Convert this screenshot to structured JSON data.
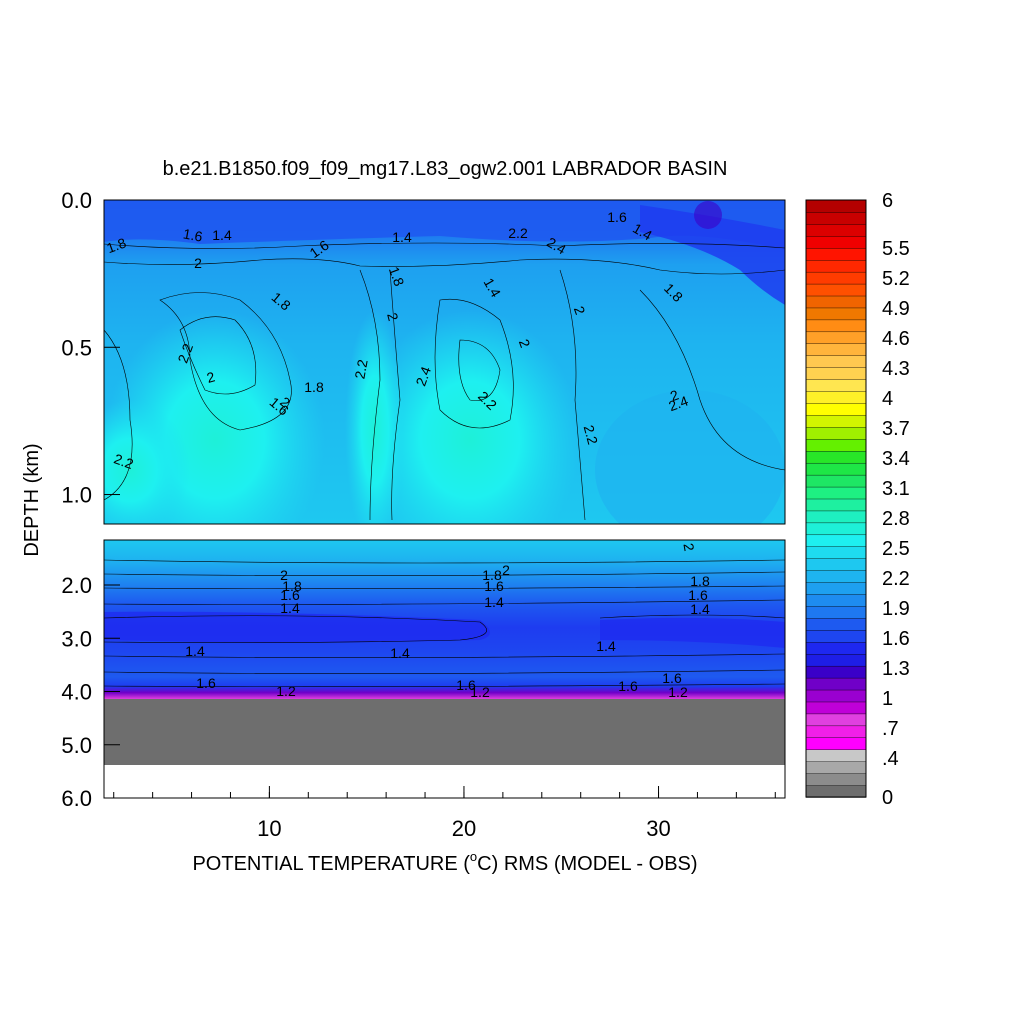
{
  "chart_data": {
    "type": "heatmap",
    "title": "b.e21.B1850.f09_f09_mg17.L83_ogw2.001 LABRADOR BASIN",
    "xlabel": "POTENTIAL TEMPERATURE (",
    "xlabel_sup": "o",
    "xlabel_rest": "C) RMS (MODEL - OBS)",
    "ylabel": "DEPTH (km)",
    "x_ticks": [
      "10",
      "20",
      "30"
    ],
    "y_ticks_upper": [
      "0.0",
      "0.5",
      "1.0"
    ],
    "y_ticks_lower": [
      "2.0",
      "3.0",
      "4.0",
      "5.0",
      "6.0"
    ],
    "colorbar_labels": [
      "6",
      "5.5",
      "5.2",
      "4.9",
      "4.6",
      "4.3",
      "4",
      "3.7",
      "3.4",
      "3.1",
      "2.8",
      "2.5",
      "2.2",
      "1.9",
      "1.6",
      "1.3",
      "1",
      ".7",
      ".4",
      "0"
    ],
    "colorbar_colors": [
      "#6e6e6e",
      "#8c8c8c",
      "#a8a8a8",
      "#c8c8c8",
      "#ff00ff",
      "#f020e8",
      "#e040e0",
      "#c000d8",
      "#9a00d0",
      "#7000c8",
      "#3a00c8",
      "#1e1ee6",
      "#1e28f0",
      "#1e46f0",
      "#1e5af0",
      "#1e78f0",
      "#1e8cf0",
      "#1ea0f0",
      "#1eb4f0",
      "#1ec8f0",
      "#1edcf0",
      "#1ef0f0",
      "#1ef0d8",
      "#1ef0c0",
      "#1ef0a0",
      "#1ef082",
      "#1ee664",
      "#1ee646",
      "#28e628",
      "#64f000",
      "#a0f000",
      "#d2f500",
      "#ffff00",
      "#fff028",
      "#ffe650",
      "#ffd250",
      "#ffc850",
      "#ffb43c",
      "#ffa028",
      "#ff8c14",
      "#f07800",
      "#f06400",
      "#ff5000",
      "#ff3c00",
      "#ff2800",
      "#ff1400",
      "#f00000",
      "#dc0000",
      "#c80000",
      "#b40000"
    ],
    "contour_labels_upper": [
      "1.8",
      "1.6",
      "1.4",
      "2",
      "1.6",
      "1.4",
      "1.8",
      "1.8",
      "2",
      "1.6",
      "1.8",
      "1.4",
      "1.4",
      "2",
      "2",
      "2.2",
      "2",
      "1.6",
      "1.8",
      "2.2",
      "2.4",
      "2.2",
      "2",
      "2.2",
      "2.2",
      "2.4",
      "2.2",
      "2",
      "2.4"
    ],
    "contour_labels_lower": [
      "2",
      "1.8",
      "1.6",
      "1.4",
      "1.8",
      "2",
      "1.6",
      "1.4",
      "1.8",
      "1.6",
      "1.4",
      "2",
      "1.4",
      "1.4",
      "1.4",
      "1.6",
      "1.6",
      "1.6",
      "1.6",
      "1.2",
      "1.2",
      "1.2"
    ],
    "ylim_upper": [
      0.0,
      1.1
    ],
    "ylim_lower": [
      1.0,
      6.0
    ],
    "xlim": [
      1.5,
      36.5
    ],
    "bottom_fill_color": "#6e6e6e"
  }
}
